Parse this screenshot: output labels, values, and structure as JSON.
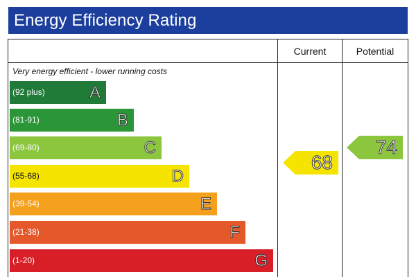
{
  "title": "Energy Efficiency Rating",
  "columns": {
    "current": "Current",
    "potential": "Potential"
  },
  "subtitle": "Very energy efficient - lower running costs",
  "bands": [
    {
      "range": "(92 plus)",
      "letter": "A",
      "color": "#1f7b37"
    },
    {
      "range": "(81-91)",
      "letter": "B",
      "color": "#2a9637"
    },
    {
      "range": "(69-80)",
      "letter": "C",
      "color": "#8cc63f"
    },
    {
      "range": "(55-68)",
      "letter": "D",
      "color": "#f5e400"
    },
    {
      "range": "(39-54)",
      "letter": "E",
      "color": "#f4a01c"
    },
    {
      "range": "(21-38)",
      "letter": "F",
      "color": "#e4582a"
    },
    {
      "range": "(1-20)",
      "letter": "G",
      "color": "#d81e27"
    }
  ],
  "current": {
    "value": "68",
    "band": "D",
    "color": "#f5e400"
  },
  "potential": {
    "value": "74",
    "band": "C",
    "color": "#8cc63f"
  }
}
